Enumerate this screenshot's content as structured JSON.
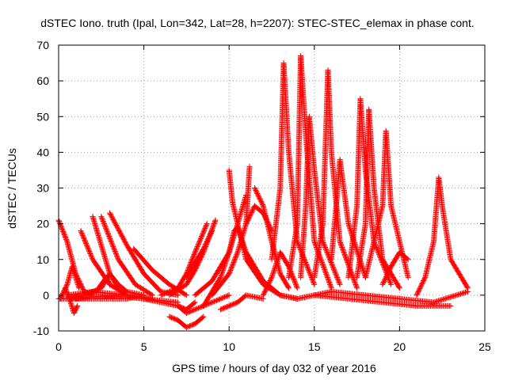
{
  "chart_data": {
    "type": "scatter",
    "title": "dSTEC Iono. truth (Ipal, Lon=342, Lat=28, h=2207): STEC-STEC_elemax in phase cont.",
    "xlabel": "GPS time / hours of day 032 of year 2016",
    "ylabel": "dSTEC  / TECUs",
    "xlim": [
      0,
      25
    ],
    "ylim": [
      -10,
      70
    ],
    "xticks": [
      "0",
      "5",
      "10",
      "15",
      "20",
      "25"
    ],
    "yticks": [
      "-10",
      "0",
      "10",
      "20",
      "30",
      "40",
      "50",
      "60",
      "70"
    ],
    "grid": true,
    "marker": "+",
    "color": "#ff0000",
    "arcs": [
      {
        "x": [
          0.0,
          0.5,
          1.0,
          1.5,
          2.0
        ],
        "y": [
          21,
          15,
          6,
          1,
          0
        ]
      },
      {
        "x": [
          0.1,
          0.5,
          0.8,
          1.0,
          1.2
        ],
        "y": [
          -1,
          3,
          8,
          5,
          2
        ]
      },
      {
        "x": [
          0.4,
          0.7,
          0.9,
          1.1
        ],
        "y": [
          2,
          -2,
          -5,
          -3
        ]
      },
      {
        "x": [
          0.0,
          2.0,
          4.0,
          5.0
        ],
        "y": [
          -1,
          -1,
          -1,
          0
        ]
      },
      {
        "x": [
          0.5,
          2.0,
          4.0,
          5.5
        ],
        "y": [
          0,
          1,
          0,
          -1
        ]
      },
      {
        "x": [
          0.7,
          1.5,
          2.5,
          3.0
        ],
        "y": [
          -1,
          0,
          2,
          6
        ]
      },
      {
        "x": [
          1.3,
          2.0,
          3.0,
          4.0
        ],
        "y": [
          18,
          10,
          3,
          0
        ]
      },
      {
        "x": [
          2.0,
          2.5,
          3.0,
          3.5
        ],
        "y": [
          22,
          14,
          6,
          2
        ]
      },
      {
        "x": [
          2.5,
          3.5,
          4.5,
          5.5
        ],
        "y": [
          22,
          10,
          3,
          0
        ]
      },
      {
        "x": [
          3.0,
          4.0,
          5.0,
          6.0,
          7.0
        ],
        "y": [
          23,
          14,
          6,
          1,
          0
        ]
      },
      {
        "x": [
          2.2,
          2.5,
          2.8,
          3.0
        ],
        "y": [
          1,
          3,
          5,
          3
        ]
      },
      {
        "x": [
          3.0,
          3.5,
          4.0,
          5.0
        ],
        "y": [
          6,
          3,
          1,
          0
        ]
      },
      {
        "x": [
          4.4,
          5.5,
          6.5,
          7.5
        ],
        "y": [
          13,
          7,
          3,
          0
        ]
      },
      {
        "x": [
          1.0,
          3.0,
          5.0,
          7.0
        ],
        "y": [
          -1,
          0,
          -1,
          -2
        ]
      },
      {
        "x": [
          5.0,
          6.0,
          7.0,
          7.5,
          8.0
        ],
        "y": [
          -1,
          -2,
          -3,
          -4,
          -2
        ]
      },
      {
        "x": [
          6.5,
          7.0,
          7.5,
          8.0,
          8.5
        ],
        "y": [
          -6,
          -7,
          -9,
          -8,
          -6
        ]
      },
      {
        "x": [
          7.0,
          7.5,
          8.0,
          9.0,
          10.0
        ],
        "y": [
          -3,
          -5,
          -4,
          -2,
          0
        ]
      },
      {
        "x": [
          6.0,
          7.0,
          7.5,
          8.0,
          8.7
        ],
        "y": [
          0,
          2,
          6,
          12,
          20
        ]
      },
      {
        "x": [
          6.5,
          7.5,
          8.0,
          8.5,
          9.2
        ],
        "y": [
          0,
          3,
          7,
          12,
          21
        ]
      },
      {
        "x": [
          7.5,
          8.0,
          8.5,
          9.0
        ],
        "y": [
          5,
          9,
          13,
          18
        ]
      },
      {
        "x": [
          8.0,
          9.0,
          10.0,
          10.5,
          11.0
        ],
        "y": [
          0,
          4,
          12,
          20,
          28
        ]
      },
      {
        "x": [
          9.0,
          10.0,
          10.5,
          11.0,
          11.2
        ],
        "y": [
          0,
          6,
          12,
          20,
          36
        ]
      },
      {
        "x": [
          10.0,
          10.2,
          10.5,
          11.0,
          12.0,
          13.0
        ],
        "y": [
          35,
          26,
          20,
          10,
          3,
          0
        ]
      },
      {
        "x": [
          8.5,
          9.5,
          10.0,
          10.3,
          10.5
        ],
        "y": [
          -3,
          5,
          12,
          18,
          19
        ]
      },
      {
        "x": [
          10.5,
          11.0,
          12.0,
          13.0,
          14.0
        ],
        "y": [
          19,
          12,
          4,
          0,
          -1
        ]
      },
      {
        "x": [
          9.5,
          10.0,
          10.5,
          11.0,
          12.0
        ],
        "y": [
          -4,
          -3,
          -2,
          0,
          -1
        ]
      },
      {
        "x": [
          11.0,
          11.5,
          12.0,
          12.5
        ],
        "y": [
          20,
          25,
          23,
          18
        ]
      },
      {
        "x": [
          11.5,
          12.0,
          12.5,
          13.0,
          13.5
        ],
        "y": [
          30,
          25,
          15,
          6,
          2
        ]
      },
      {
        "x": [
          12.5,
          13.0,
          13.2,
          13.5,
          14.0,
          15.0
        ],
        "y": [
          10,
          30,
          65,
          40,
          15,
          3
        ]
      },
      {
        "x": [
          13.5,
          14.0,
          14.2,
          14.5,
          15.0,
          16.0
        ],
        "y": [
          5,
          20,
          67,
          45,
          15,
          2
        ]
      },
      {
        "x": [
          14.2,
          14.5,
          14.7,
          15.0,
          15.5,
          16.5
        ],
        "y": [
          5,
          25,
          50,
          35,
          15,
          3
        ]
      },
      {
        "x": [
          12.0,
          12.5,
          13.0,
          13.5,
          14.0
        ],
        "y": [
          0,
          5,
          12,
          8,
          2
        ]
      },
      {
        "x": [
          15.0,
          15.5,
          15.8,
          16.0,
          16.5,
          17.5
        ],
        "y": [
          5,
          20,
          63,
          40,
          15,
          2
        ]
      },
      {
        "x": [
          16.0,
          16.3,
          16.5,
          17.0,
          18.0
        ],
        "y": [
          10,
          26,
          38,
          20,
          5
        ]
      },
      {
        "x": [
          17.0,
          17.5,
          17.7,
          18.0,
          18.5,
          19.5
        ],
        "y": [
          5,
          25,
          55,
          35,
          15,
          3
        ]
      },
      {
        "x": [
          17.5,
          18.0,
          18.2,
          18.5,
          19.0,
          20.0
        ],
        "y": [
          5,
          20,
          52,
          30,
          10,
          2
        ]
      },
      {
        "x": [
          18.0,
          18.5,
          19.0,
          19.2,
          19.5,
          20.5
        ],
        "y": [
          5,
          15,
          25,
          46,
          25,
          5
        ]
      },
      {
        "x": [
          19.0,
          19.5,
          20.0,
          20.5
        ],
        "y": [
          3,
          8,
          12,
          10
        ]
      },
      {
        "x": [
          21.0,
          21.5,
          22.0,
          22.3,
          22.5,
          23.0,
          24.0
        ],
        "y": [
          0,
          5,
          15,
          33,
          25,
          10,
          2
        ]
      },
      {
        "x": [
          15.0,
          17.0,
          19.0,
          21.0,
          23.0
        ],
        "y": [
          0,
          -1,
          -2,
          -3,
          -3
        ]
      },
      {
        "x": [
          16.0,
          18.0,
          20.0,
          22.0,
          24.0
        ],
        "y": [
          1,
          0,
          -1,
          -2,
          1
        ]
      },
      {
        "x": [
          13.0,
          14.0,
          15.0,
          16.0
        ],
        "y": [
          0,
          -1,
          0,
          1
        ]
      }
    ]
  }
}
